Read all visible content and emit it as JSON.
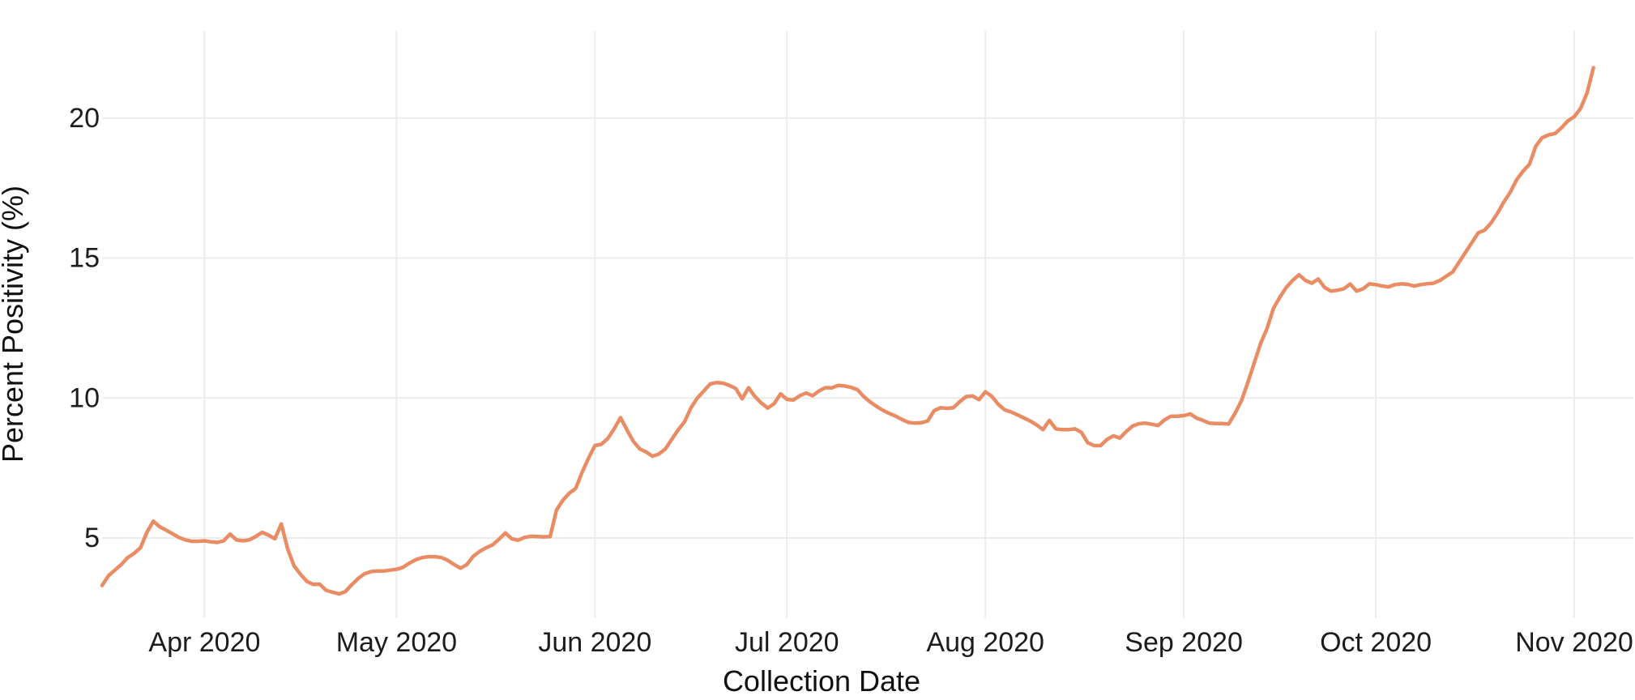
{
  "chart_data": {
    "type": "line",
    "title": "",
    "xlabel": "Collection Date",
    "ylabel": "Percent Positivity (%)",
    "legend": false,
    "grid": true,
    "line_color": "#E98B63",
    "gridline_color": "#ECECEC",
    "text_color": "#1c1c1c",
    "background_color": "#ffffff",
    "x_start_date": "2020-03-16",
    "x_frequency": "daily",
    "x_tick_labels": [
      "Apr 2020",
      "May 2020",
      "Jun 2020",
      "Jul 2020",
      "Aug 2020",
      "Sep 2020",
      "Oct 2020",
      "Nov 2020"
    ],
    "x_tick_day_index": [
      16,
      46,
      77,
      107,
      138,
      169,
      199,
      230
    ],
    "y_ticks": [
      5,
      10,
      15,
      20
    ],
    "y_tick_labels": [
      "5",
      "10",
      "15",
      "20"
    ],
    "ylim": [
      2.1,
      23.1
    ],
    "series_name": "Percent Positivity",
    "values": [
      3.3,
      3.65,
      3.85,
      4.05,
      4.3,
      4.45,
      4.65,
      5.2,
      5.6,
      5.4,
      5.28,
      5.15,
      5.02,
      4.93,
      4.88,
      4.88,
      4.9,
      4.86,
      4.84,
      4.9,
      5.14,
      4.93,
      4.9,
      4.93,
      5.05,
      5.2,
      5.1,
      4.97,
      5.5,
      4.6,
      4.0,
      3.7,
      3.45,
      3.34,
      3.35,
      3.13,
      3.06,
      3.0,
      3.08,
      3.33,
      3.55,
      3.72,
      3.8,
      3.82,
      3.82,
      3.85,
      3.88,
      3.95,
      4.1,
      4.22,
      4.3,
      4.33,
      4.33,
      4.3,
      4.2,
      4.05,
      3.92,
      4.05,
      4.35,
      4.52,
      4.65,
      4.75,
      4.95,
      5.18,
      4.97,
      4.92,
      5.02,
      5.06,
      5.05,
      5.04,
      5.05,
      6.0,
      6.35,
      6.6,
      6.77,
      7.35,
      7.85,
      8.3,
      8.35,
      8.55,
      8.9,
      9.3,
      8.86,
      8.45,
      8.18,
      8.07,
      7.92,
      8.0,
      8.18,
      8.52,
      8.86,
      9.15,
      9.65,
      10.0,
      10.25,
      10.5,
      10.55,
      10.53,
      10.45,
      10.34,
      9.97,
      10.37,
      10.05,
      9.82,
      9.64,
      9.8,
      10.15,
      9.95,
      9.93,
      10.08,
      10.18,
      10.08,
      10.25,
      10.37,
      10.36,
      10.45,
      10.43,
      10.38,
      10.3,
      10.05,
      9.86,
      9.7,
      9.56,
      9.45,
      9.35,
      9.23,
      9.13,
      9.1,
      9.12,
      9.18,
      9.55,
      9.65,
      9.63,
      9.65,
      9.87,
      10.05,
      10.07,
      9.94,
      10.22,
      10.06,
      9.78,
      9.58,
      9.5,
      9.4,
      9.29,
      9.18,
      9.04,
      8.87,
      9.2,
      8.9,
      8.87,
      8.87,
      8.9,
      8.77,
      8.4,
      8.3,
      8.3,
      8.52,
      8.65,
      8.57,
      8.8,
      9.0,
      9.08,
      9.1,
      9.06,
      9.02,
      9.22,
      9.35,
      9.35,
      9.37,
      9.43,
      9.28,
      9.2,
      9.1,
      9.09,
      9.09,
      9.07,
      9.45,
      9.9,
      10.55,
      11.25,
      11.95,
      12.48,
      13.2,
      13.6,
      13.95,
      14.2,
      14.4,
      14.2,
      14.1,
      14.25,
      13.95,
      13.82,
      13.85,
      13.9,
      14.07,
      13.82,
      13.9,
      14.08,
      14.05,
      14.0,
      13.97,
      14.05,
      14.08,
      14.06,
      14.0,
      14.05,
      14.08,
      14.1,
      14.2,
      14.35,
      14.5,
      14.85,
      15.2,
      15.55,
      15.9,
      16.0,
      16.25,
      16.6,
      17.0,
      17.35,
      17.8,
      18.1,
      18.35,
      19.0,
      19.3,
      19.4,
      19.45,
      19.65,
      19.9,
      20.05,
      20.35,
      20.9,
      21.8
    ]
  }
}
